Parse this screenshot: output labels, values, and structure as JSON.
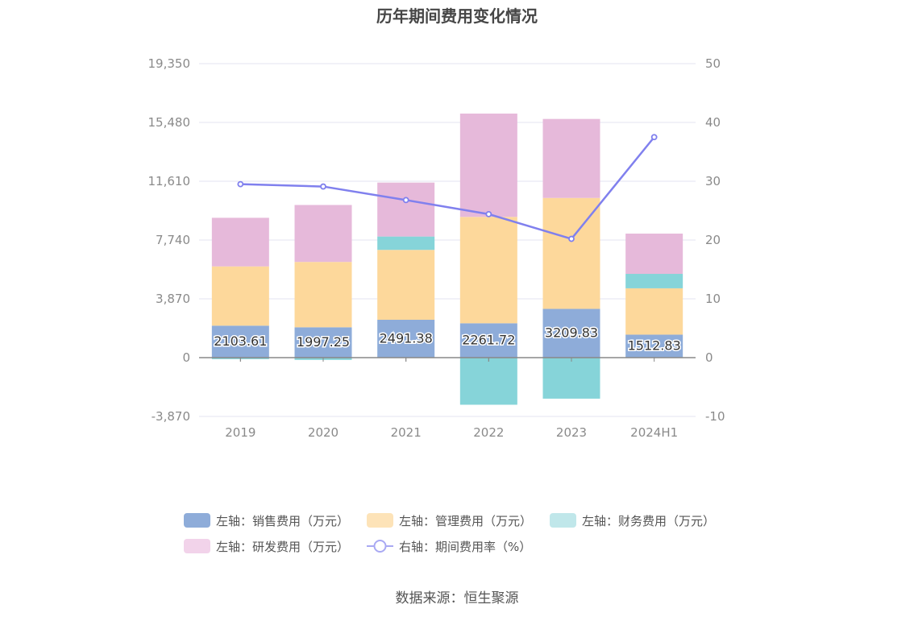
{
  "chart_data": {
    "type": "bar",
    "stacked": true,
    "title": "历年期间费用变化情况",
    "categories": [
      "2019",
      "2020",
      "2021",
      "2022",
      "2023",
      "2024H1"
    ],
    "left_axis": {
      "ylim": [
        -3870,
        19350
      ],
      "ticks": [
        -3870,
        0,
        3870,
        7740,
        11610,
        15480,
        19350
      ],
      "tick_labels": [
        "-3,870",
        "0",
        "3,870",
        "7,740",
        "11,610",
        "15,480",
        "19,350"
      ]
    },
    "right_axis": {
      "ylim": [
        -10,
        50
      ],
      "ticks": [
        -10,
        0,
        10,
        20,
        30,
        40,
        50
      ],
      "tick_labels": [
        "-10",
        "0",
        "10",
        "20",
        "30",
        "40",
        "50"
      ]
    },
    "series": [
      {
        "name": "左轴：销售费用（万元）",
        "axis": "left",
        "type": "bar",
        "color": "#8eacd9",
        "values": [
          2103.61,
          1997.25,
          2491.38,
          2261.72,
          3209.83,
          1512.83
        ],
        "labels": [
          "2103.61",
          "1997.25",
          "2491.38",
          "2261.72",
          "3209.83",
          "1512.83"
        ]
      },
      {
        "name": "左轴：管理费用（万元）",
        "axis": "left",
        "type": "bar",
        "color": "#fdd89b",
        "values": [
          3900,
          4300,
          4600,
          7000,
          7300,
          3050
        ]
      },
      {
        "name": "左轴：财务费用（万元）",
        "axis": "left",
        "type": "bar",
        "color": "#86d4d9",
        "values": [
          -100,
          -150,
          880,
          -3100,
          -2700,
          950
        ]
      },
      {
        "name": "左轴：研发费用（万元）",
        "axis": "left",
        "type": "bar",
        "color": "#e6b9da",
        "values": [
          3200,
          3750,
          3550,
          6800,
          5200,
          2650
        ]
      },
      {
        "name": "右轴：期间费用率（%）",
        "axis": "right",
        "type": "line",
        "color": "#8080ee",
        "values": [
          29.5,
          29.1,
          26.8,
          24.4,
          20.2,
          37.5
        ]
      }
    ],
    "legend_position": "bottom"
  },
  "legend": {
    "rows": [
      [
        {
          "label": "左轴：销售费用（万元）",
          "color": "#8eacd9",
          "kind": "bar"
        },
        {
          "label": "左轴：管理费用（万元）",
          "color": "#fde3b8",
          "kind": "bar"
        },
        {
          "label": "左轴：财务费用（万元）",
          "color": "#c0e7ea",
          "kind": "bar"
        }
      ],
      [
        {
          "label": "左轴：研发费用（万元）",
          "color": "#f2d3ea",
          "kind": "bar"
        },
        {
          "label": "右轴：期间费用率（%）",
          "color": "#a9a9f3",
          "kind": "line"
        }
      ]
    ]
  },
  "source": "数据来源：恒生聚源"
}
